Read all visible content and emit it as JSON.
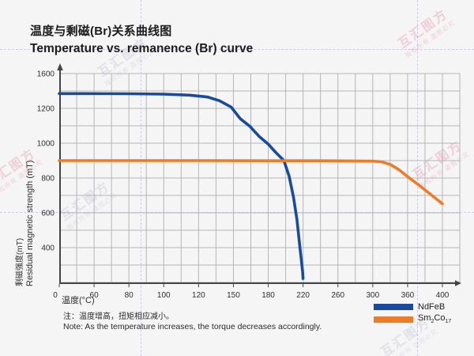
{
  "header": {
    "title_zh": "温度与剩磁(Br)关系曲线图",
    "title_en": "Temperature vs. remanence (Br) curve"
  },
  "chart_data": {
    "type": "line",
    "x_ticks": [
      0,
      60,
      80,
      100,
      120,
      150,
      180,
      220,
      260,
      300,
      360,
      400
    ],
    "y_ticks": [
      1600,
      1200,
      1000,
      800,
      600,
      400
    ],
    "xlabel": "温度(°C)",
    "ylabel_zh": "剩磁强度(mT)",
    "ylabel_en": "Residual magnetic strength (mT)",
    "grid": true,
    "legend_position": "bottom-right",
    "axis_color": "#454545",
    "grid_color": "#b6b6ba",
    "series": [
      {
        "name": "NdFeB",
        "color": "#1a4a9d",
        "points": [
          [
            0,
            1370
          ],
          [
            40,
            1370
          ],
          [
            80,
            1368
          ],
          [
            100,
            1364
          ],
          [
            115,
            1352
          ],
          [
            128,
            1330
          ],
          [
            138,
            1288
          ],
          [
            148,
            1215
          ],
          [
            156,
            1140
          ],
          [
            164,
            1098
          ],
          [
            172,
            1040
          ],
          [
            180,
            995
          ],
          [
            188,
            950
          ],
          [
            198,
            900
          ],
          [
            204,
            810
          ],
          [
            209,
            690
          ],
          [
            213,
            560
          ],
          [
            216,
            420
          ],
          [
            218,
            260
          ],
          [
            219.5,
            120
          ],
          [
            220,
            45
          ]
        ]
      },
      {
        "name": "Sm2Co17",
        "color": "#ee7b28",
        "points": [
          [
            0,
            900
          ],
          [
            60,
            900
          ],
          [
            120,
            900
          ],
          [
            180,
            899
          ],
          [
            240,
            899
          ],
          [
            300,
            897
          ],
          [
            315,
            893
          ],
          [
            330,
            878
          ],
          [
            345,
            848
          ],
          [
            360,
            808
          ],
          [
            375,
            752
          ],
          [
            388,
            700
          ],
          [
            400,
            652
          ]
        ]
      }
    ]
  },
  "legend": {
    "ndfeb": "NdFeB",
    "smco": {
      "a": "Sm",
      "b": "2",
      "c": "Co",
      "d": "17"
    }
  },
  "note": {
    "zh": "注：温度增高，扭矩相应减小。",
    "en": "Note: As the temperature increases, the torque decreases accordingly."
  },
  "watermark": {
    "brand": "互汇图方",
    "claim": "版权所有 盗图必究"
  }
}
